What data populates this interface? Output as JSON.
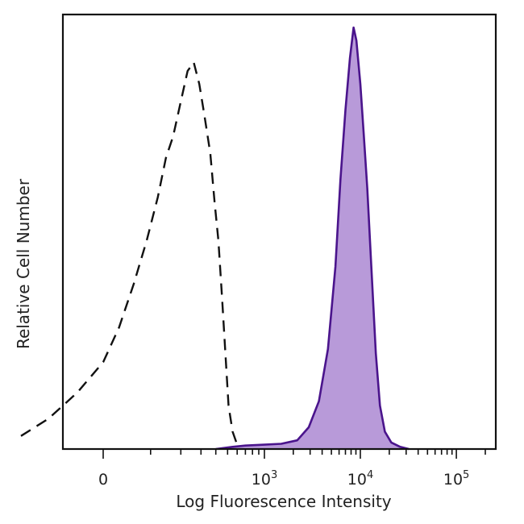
{
  "chart_data": {
    "type": "area",
    "title": "",
    "xlabel": "Log Fluorescence Intensity",
    "ylabel": "Relative Cell Number",
    "x_scale": "biexponential",
    "xlim": [
      -300,
      250000
    ],
    "ylim": [
      0,
      1
    ],
    "grid": false,
    "legend": "none",
    "x_ticks": [
      {
        "value": 0,
        "base": "0",
        "exp": ""
      },
      {
        "value": 1000,
        "base": "10",
        "exp": "3"
      },
      {
        "value": 10000,
        "base": "10",
        "exp": "4"
      },
      {
        "value": 100000,
        "base": "10",
        "exp": "5"
      }
    ],
    "series": [
      {
        "style": "dashed",
        "color": "#111111",
        "fill": "none",
        "points": [
          [
            -220,
            0.03
          ],
          [
            -120,
            0.07
          ],
          [
            -50,
            0.13
          ],
          [
            0,
            0.2
          ],
          [
            30,
            0.28
          ],
          [
            60,
            0.38
          ],
          [
            90,
            0.48
          ],
          [
            120,
            0.58
          ],
          [
            145,
            0.67
          ],
          [
            170,
            0.72
          ],
          [
            200,
            0.8
          ],
          [
            230,
            0.87
          ],
          [
            260,
            0.89
          ],
          [
            290,
            0.84
          ],
          [
            320,
            0.77
          ],
          [
            360,
            0.68
          ],
          [
            390,
            0.57
          ],
          [
            420,
            0.48
          ],
          [
            450,
            0.35
          ],
          [
            480,
            0.22
          ],
          [
            510,
            0.1
          ],
          [
            550,
            0.04
          ],
          [
            600,
            0.01
          ]
        ]
      },
      {
        "style": "solid",
        "color": "#4a148c",
        "fill": "#b89ad9",
        "points": [
          [
            400,
            0.0
          ],
          [
            550,
            0.005
          ],
          [
            700,
            0.008
          ],
          [
            1000,
            0.01
          ],
          [
            1500,
            0.012
          ],
          [
            2200,
            0.02
          ],
          [
            2900,
            0.05
          ],
          [
            3700,
            0.11
          ],
          [
            4600,
            0.23
          ],
          [
            5500,
            0.42
          ],
          [
            6200,
            0.62
          ],
          [
            7000,
            0.78
          ],
          [
            7800,
            0.9
          ],
          [
            8500,
            0.97
          ],
          [
            9100,
            0.94
          ],
          [
            10000,
            0.84
          ],
          [
            10800,
            0.73
          ],
          [
            11800,
            0.6
          ],
          [
            13000,
            0.42
          ],
          [
            14500,
            0.22
          ],
          [
            16000,
            0.1
          ],
          [
            18000,
            0.04
          ],
          [
            21000,
            0.015
          ],
          [
            26000,
            0.005
          ],
          [
            32000,
            0.0
          ]
        ]
      }
    ]
  }
}
